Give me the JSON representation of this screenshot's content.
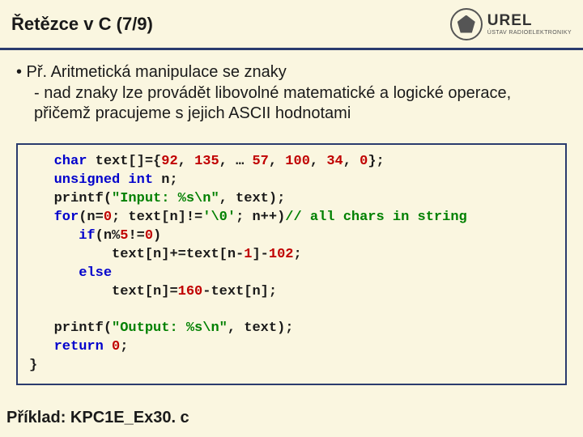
{
  "header": {
    "title": "Řetězce v C (7/9)",
    "logo_name": "UREL",
    "logo_sub": "ÚSTAV RADIOELEKTRONIKY"
  },
  "content": {
    "bullet_main": "• Př. Aritmetická manipulace se znaky",
    "bullet_sub": "- nad znaky lze provádět libovolné matematické a logické operace, přičemž pracujeme s jejich ASCII hodnotami"
  },
  "code": {
    "l1_a": "char",
    "l1_b": " text[]={",
    "l1_c": "92",
    "l1_d": ", ",
    "l1_e": "135",
    "l1_f": ", … ",
    "l1_g": "57",
    "l1_h": ", ",
    "l1_i": "100",
    "l1_j": ", ",
    "l1_k": "34",
    "l1_l": ", ",
    "l1_m": "0",
    "l1_n": "};",
    "l2_a": "unsigned int",
    "l2_b": " n;",
    "l3_a": "printf(",
    "l3_b": "\"Input: %s\\n\"",
    "l3_c": ", text);",
    "l4_a": "for",
    "l4_b": "(n=",
    "l4_c": "0",
    "l4_d": "; text[n]!=",
    "l4_e": "'\\0'",
    "l4_f": "; n++)",
    "l4_g": "// all chars in string",
    "l5_a": "if",
    "l5_b": "(n%",
    "l5_c": "5",
    "l5_d": "!=",
    "l5_e": "0",
    "l5_f": ")",
    "l6_a": "text[n]+=text[n-",
    "l6_b": "1",
    "l6_c": "]-",
    "l6_d": "102",
    "l6_e": ";",
    "l7_a": "else",
    "l8_a": "text[n]=",
    "l8_b": "160",
    "l8_c": "-text[n];",
    "l9_a": "printf(",
    "l9_b": "\"Output: %s\\n\"",
    "l9_c": ", text);",
    "l10_a": "return",
    "l10_b": " ",
    "l10_c": "0",
    "l10_d": ";",
    "l11_a": "}"
  },
  "footer": {
    "example": "Příklad: KPC1E_Ex30. c"
  }
}
